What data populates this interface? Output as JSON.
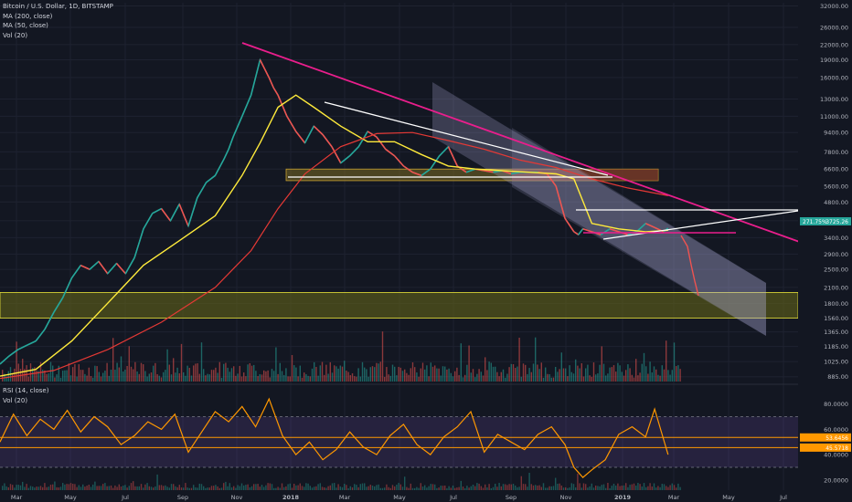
{
  "legend": {
    "main_title": "Bitcoin / U.S. Dollar, 1D, BITSTAMP",
    "ma200": "MA (200, close)",
    "ma50": "MA (50, close)",
    "vol": "Vol (20)"
  },
  "rsi_legend": {
    "rsi": "RSI (14, close)",
    "vol": "Vol (20)"
  },
  "colors": {
    "background": "#131722",
    "price_line": "#26a69a",
    "down": "#ef5350",
    "ma200": "#e53935",
    "ma50": "#ffeb3b",
    "trendline_magenta": "#e91e8c",
    "channel_fill": "#b4b0e0",
    "support_zone": "#5a5a1e",
    "resistance_zone": "#6e3030",
    "rsi_line": "#ff9800",
    "rsi_band": "#7e57c2"
  },
  "chart_data": [
    {
      "type": "line",
      "panel": "price",
      "x_tick_labels": [
        "Mar",
        "May",
        "Jul",
        "Sep",
        "Nov",
        "2018",
        "Mar",
        "May",
        "Jul",
        "Sep",
        "Nov",
        "2019",
        "Mar",
        "May",
        "Jul"
      ],
      "y_scale": "log",
      "y_tick_labels": [
        "32000.00",
        "26000.00",
        "22000.00",
        "19000.00",
        "16000.00",
        "13000.00",
        "11000.00",
        "9400.00",
        "7800.00",
        "6600.00",
        "5600.00",
        "4800.00",
        "4000.00",
        "3400.00",
        "2900.00",
        "2500.00",
        "2100.00",
        "1800.00",
        "1560.00",
        "1365.00",
        "1185.00",
        "1025.00",
        "885.00"
      ],
      "ylim": [
        830,
        33000
      ],
      "price_labels": [
        "271.75%",
        "3725.26"
      ],
      "series": [
        {
          "kind": "price",
          "x": [
            0,
            10,
            20,
            30,
            40,
            50,
            60,
            70,
            80,
            90,
            100,
            110,
            120,
            130,
            140,
            150,
            160,
            170,
            180,
            190,
            200,
            210,
            220,
            230,
            240,
            250,
            255,
            260,
            270,
            280,
            290,
            300,
            305,
            310,
            320,
            330,
            340,
            350,
            360,
            370,
            380,
            390,
            400,
            410,
            420,
            430,
            440,
            450,
            460,
            470,
            480,
            490,
            500,
            510,
            520,
            530,
            540,
            550,
            560,
            570,
            580,
            590,
            600,
            610,
            620,
            630,
            640,
            645,
            650,
            660,
            670,
            680,
            690,
            700,
            710,
            720,
            730,
            740,
            745
          ],
          "y": [
            1000,
            1080,
            1150,
            1200,
            1250,
            1400,
            1650,
            1900,
            2300,
            2600,
            2500,
            2700,
            2400,
            2650,
            2400,
            2800,
            3700,
            4300,
            4500,
            4000,
            4700,
            3800,
            5000,
            5800,
            6200,
            7300,
            8000,
            9000,
            11000,
            13500,
            19000,
            16000,
            14500,
            13500,
            11000,
            9500,
            8500,
            10000,
            9200,
            8200,
            7000,
            7500,
            8200,
            9500,
            9000,
            8000,
            7500,
            6800,
            6400,
            6200,
            6600,
            7500,
            8200,
            6800,
            6400,
            6600,
            6500,
            6400,
            6500,
            6300,
            6400,
            6400,
            6400,
            6300,
            5600,
            4100,
            3600,
            3500,
            3700,
            3600,
            3500,
            3700,
            3600,
            3500,
            3600,
            3900,
            3750,
            3600,
            3725
          ]
        },
        {
          "kind": "ma50",
          "x": [
            0,
            40,
            80,
            120,
            160,
            200,
            240,
            270,
            290,
            310,
            330,
            350,
            380,
            410,
            440,
            470,
            500,
            530,
            560,
            590,
            620,
            640,
            660,
            690,
            720,
            745
          ],
          "y": [
            890,
            950,
            1250,
            1800,
            2600,
            3300,
            4200,
            6200,
            8500,
            12000,
            13500,
            12000,
            10000,
            8600,
            8600,
            7600,
            6800,
            6600,
            6500,
            6400,
            6300,
            6000,
            3900,
            3700,
            3600,
            3650
          ]
        },
        {
          "kind": "ma200",
          "x": [
            0,
            60,
            120,
            180,
            240,
            280,
            310,
            340,
            380,
            420,
            460,
            500,
            540,
            580,
            620,
            660,
            700,
            745
          ],
          "y": [
            870,
            940,
            1150,
            1500,
            2100,
            3000,
            4500,
            6300,
            8200,
            9300,
            9400,
            8700,
            8000,
            7200,
            6700,
            6000,
            5500,
            5100
          ]
        }
      ]
    },
    {
      "type": "line",
      "panel": "rsi",
      "y_tick_labels": [
        "80.0000",
        "60.0000",
        "40.0000",
        "20.0000"
      ],
      "ylim": [
        12,
        92
      ],
      "value_labels": [
        "53.6456",
        "45.5718"
      ],
      "series": [
        {
          "kind": "rsi",
          "x": [
            0,
            15,
            30,
            45,
            60,
            75,
            90,
            105,
            120,
            135,
            150,
            165,
            180,
            195,
            210,
            225,
            240,
            255,
            270,
            285,
            300,
            315,
            330,
            345,
            360,
            375,
            390,
            405,
            420,
            435,
            450,
            465,
            480,
            495,
            510,
            525,
            540,
            555,
            570,
            585,
            600,
            615,
            630,
            640,
            650,
            660,
            675,
            690,
            705,
            720,
            730,
            740,
            745
          ],
          "y": [
            50,
            72,
            55,
            68,
            60,
            75,
            58,
            70,
            62,
            48,
            55,
            66,
            60,
            72,
            42,
            58,
            74,
            66,
            78,
            62,
            84,
            55,
            40,
            50,
            36,
            44,
            58,
            46,
            40,
            55,
            64,
            48,
            40,
            54,
            62,
            74,
            42,
            56,
            50,
            44,
            56,
            62,
            48,
            30,
            22,
            28,
            36,
            56,
            62,
            54,
            76,
            52,
            40
          ]
        }
      ]
    }
  ]
}
